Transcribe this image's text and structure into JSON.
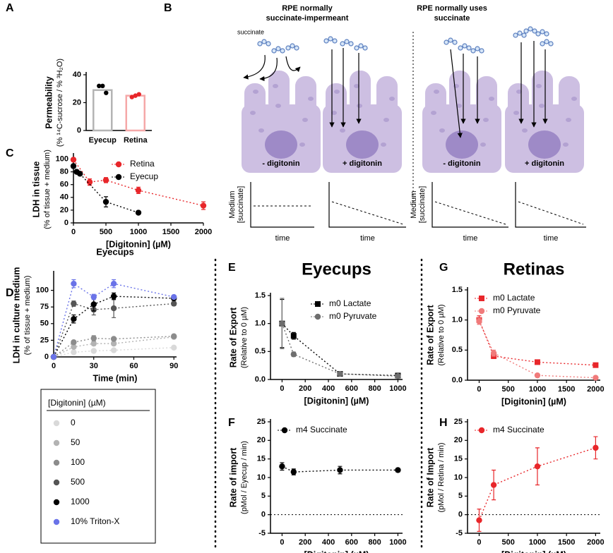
{
  "chart_data": [
    {
      "panel": "A",
      "type": "bar",
      "ylabel": "Permeability",
      "ylabel2": "(% ¹⁴C-sucrose / % ³H₂O)",
      "categories": [
        "Eyecup",
        "Retina"
      ],
      "values": [
        29,
        25
      ],
      "colors": [
        "#b4b4b4",
        "#f5a8a8"
      ],
      "points": [
        [
          32,
          27,
          32
        ],
        [
          24,
          26,
          25
        ]
      ],
      "point_colors": [
        "#000000",
        "#e8262a"
      ],
      "ylim": [
        0,
        40
      ],
      "yticks": [
        0,
        20,
        40
      ]
    },
    {
      "panel": "C",
      "type": "line",
      "ylabel": "LDH in tissue",
      "ylabel2": "(% of tissue + medium)",
      "xlabel": "[Digitonin] (µM)",
      "xlim": [
        0,
        2000
      ],
      "xticks": [
        0,
        500,
        1000,
        1500,
        2000
      ],
      "ylim": [
        0,
        105
      ],
      "yticks": [
        0,
        20,
        40,
        60,
        80,
        100
      ],
      "legend": "top-right",
      "series": [
        {
          "name": "Retina",
          "color": "#e8262a",
          "marker": "circle",
          "x": [
            0,
            250,
            500,
            1000,
            2000
          ],
          "values": [
            99,
            64,
            67,
            51,
            27
          ],
          "errors": [
            3,
            5,
            4,
            5,
            6
          ]
        },
        {
          "name": "Eyecup",
          "color": "#000000",
          "marker": "circle",
          "x": [
            0,
            50,
            100,
            500,
            1000
          ],
          "values": [
            89,
            80,
            77,
            33,
            16
          ],
          "errors": [
            3,
            2,
            2,
            8,
            1
          ]
        }
      ]
    },
    {
      "panel": "D",
      "type": "line",
      "title": "Eyecups",
      "ylabel": "LDH in culture medium",
      "ylabel2": "(% of tissue + medium)",
      "xlabel": "Time (min)",
      "xlim": [
        0,
        92
      ],
      "xticks": [
        0,
        30,
        60,
        90
      ],
      "ylim": [
        0,
        125
      ],
      "yticks": [
        0,
        25,
        50,
        75,
        100
      ],
      "legend": "bottom",
      "legend_title": "[Digitonin] (µM)",
      "series": [
        {
          "name": "0",
          "color": "#d9d9d9",
          "marker": "circle",
          "x": [
            0,
            15,
            30,
            45,
            90
          ],
          "values": [
            0,
            7,
            9,
            10,
            14
          ],
          "errors": [
            0,
            1,
            2,
            1,
            1
          ]
        },
        {
          "name": "50",
          "color": "#b3b3b3",
          "marker": "circle",
          "x": [
            0,
            15,
            30,
            45,
            90
          ],
          "values": [
            0,
            15,
            20,
            20,
            30
          ],
          "errors": [
            0,
            2,
            3,
            2,
            1
          ]
        },
        {
          "name": "100",
          "color": "#8c8c8c",
          "marker": "circle",
          "x": [
            0,
            15,
            30,
            45,
            90
          ],
          "values": [
            0,
            22,
            28,
            27,
            31
          ],
          "errors": [
            0,
            2,
            4,
            2,
            1
          ]
        },
        {
          "name": "500",
          "color": "#555555",
          "marker": "circle",
          "x": [
            0,
            15,
            30,
            45,
            90
          ],
          "values": [
            0,
            80,
            71,
            73,
            80
          ],
          "errors": [
            0,
            4,
            8,
            14,
            3
          ]
        },
        {
          "name": "1000",
          "color": "#000000",
          "marker": "circle",
          "x": [
            0,
            15,
            30,
            45,
            90
          ],
          "values": [
            0,
            57,
            79,
            91,
            88
          ],
          "errors": [
            0,
            6,
            10,
            5,
            3
          ]
        },
        {
          "name": "10% Triton-X",
          "color": "#6a73e8",
          "marker": "circle",
          "x": [
            0,
            15,
            30,
            45,
            90
          ],
          "values": [
            0,
            110,
            90,
            110,
            90
          ],
          "errors": [
            0,
            6,
            4,
            6,
            2
          ]
        }
      ]
    },
    {
      "panel": "E",
      "type": "line",
      "title": "Eyecups",
      "ylabel": "Rate of Export",
      "ylabel2": "(Relative to 0 µM)",
      "xlabel": "[Digitonin] (µM)",
      "xlim": [
        -100,
        1040
      ],
      "xticks": [
        0,
        200,
        400,
        600,
        800,
        1000
      ],
      "ylim": [
        0,
        1.5
      ],
      "yticks": [
        {
          "value": 0,
          "label": "0.0"
        },
        {
          "value": 0.5,
          "label": "0.5"
        },
        {
          "value": 1,
          "label": "1.0"
        },
        {
          "value": 1.5,
          "label": "1.5"
        }
      ],
      "legend": "top-right",
      "series": [
        {
          "name": "m0 Lactate",
          "color": "#000000",
          "marker": "square",
          "x": [
            0,
            100,
            500,
            1000
          ],
          "values": [
            1.0,
            0.78,
            0.1,
            0.07
          ],
          "errors": [
            0.43,
            0.06,
            0.03,
            0.04
          ]
        },
        {
          "name": "m0 Pyruvate",
          "color": "#6e6e6e",
          "marker": "circle",
          "x": [
            0,
            100,
            500,
            1000
          ],
          "values": [
            1.0,
            0.45,
            0.1,
            0.06
          ],
          "errors": [
            0.45,
            0.04,
            0.03,
            0.03
          ]
        }
      ]
    },
    {
      "panel": "F",
      "type": "line",
      "ylabel": "Rate of import",
      "ylabel2": "(pMol / Eyecup / min)",
      "xlabel": "[Digitonin] (µM)",
      "xlim": [
        -100,
        1040
      ],
      "xticks": [
        0,
        200,
        400,
        600,
        800,
        1000
      ],
      "ylim": [
        -5,
        25
      ],
      "yticks": [
        -5,
        0,
        5,
        10,
        15,
        20,
        25
      ],
      "zero_line": true,
      "legend": "top-left",
      "series": [
        {
          "name": "m4 Succinate",
          "color": "#000000",
          "marker": "circle",
          "x": [
            0,
            100,
            500,
            1000
          ],
          "values": [
            13,
            11.5,
            12,
            12
          ],
          "errors": [
            1,
            0.8,
            1,
            0.5
          ]
        }
      ]
    },
    {
      "panel": "G",
      "type": "line",
      "title": "Retinas",
      "ylabel": "Rate of Export",
      "ylabel2": "(Relative to 0 µM)",
      "xlabel": "[Digitonin] (µM)",
      "xlim": [
        -200,
        2080
      ],
      "xticks": [
        0,
        500,
        1000,
        1500,
        2000
      ],
      "ylim": [
        0,
        1.5
      ],
      "yticks": [
        {
          "value": 0,
          "label": "0.0"
        },
        {
          "value": 0.5,
          "label": "0.5"
        },
        {
          "value": 1,
          "label": "1.0"
        },
        {
          "value": 1.5,
          "label": "1.5"
        }
      ],
      "legend": "top-left",
      "series": [
        {
          "name": "m0 Lactate",
          "color": "#e8262a",
          "marker": "square",
          "x": [
            0,
            250,
            1000,
            2000
          ],
          "values": [
            1.0,
            0.4,
            0.3,
            0.25
          ],
          "errors": [
            0.07,
            0.04,
            0.02,
            0.02
          ]
        },
        {
          "name": "m0 Pyruvate",
          "color": "#f07a7a",
          "marker": "circle",
          "x": [
            0,
            250,
            1000,
            2000
          ],
          "values": [
            0.98,
            0.45,
            0.08,
            0.04
          ],
          "errors": [
            0.05,
            0.05,
            0.02,
            0.01
          ]
        }
      ]
    },
    {
      "panel": "H",
      "type": "line",
      "ylabel": "Rate of Import",
      "ylabel2": "(pMol / Retina / min)",
      "xlabel": "[Digitonin] (µM)",
      "xlim": [
        -200,
        2080
      ],
      "xticks": [
        0,
        500,
        1000,
        1500,
        2000
      ],
      "ylim": [
        -5,
        25
      ],
      "yticks": [
        -5,
        0,
        5,
        10,
        15,
        20,
        25
      ],
      "zero_line": true,
      "legend": "top-left",
      "series": [
        {
          "name": "m4 Succinate",
          "color": "#e8262a",
          "marker": "circle",
          "x": [
            0,
            250,
            1000,
            2000
          ],
          "values": [
            -1.5,
            8,
            13,
            18
          ],
          "errors": [
            3,
            4,
            5,
            3
          ]
        }
      ]
    }
  ],
  "diagram": {
    "panel": "B",
    "groups": [
      {
        "title": [
          "RPE normally",
          "succinate-impermeant"
        ],
        "cells": [
          "- digitonin",
          "+ digitonin"
        ]
      },
      {
        "title": [
          "RPE normally uses",
          "succinate"
        ],
        "cells": [
          "- digitonin",
          "+ digitonin"
        ]
      }
    ],
    "molecule_label": "succinate",
    "graphs": [
      {
        "ylabel": [
          "Medium",
          "[succinate]"
        ],
        "xlabel": "time"
      },
      {
        "xlabel": "time"
      },
      {
        "ylabel": [
          "Medium",
          "[succinate]"
        ],
        "xlabel": "time"
      },
      {
        "xlabel": "time"
      }
    ]
  }
}
